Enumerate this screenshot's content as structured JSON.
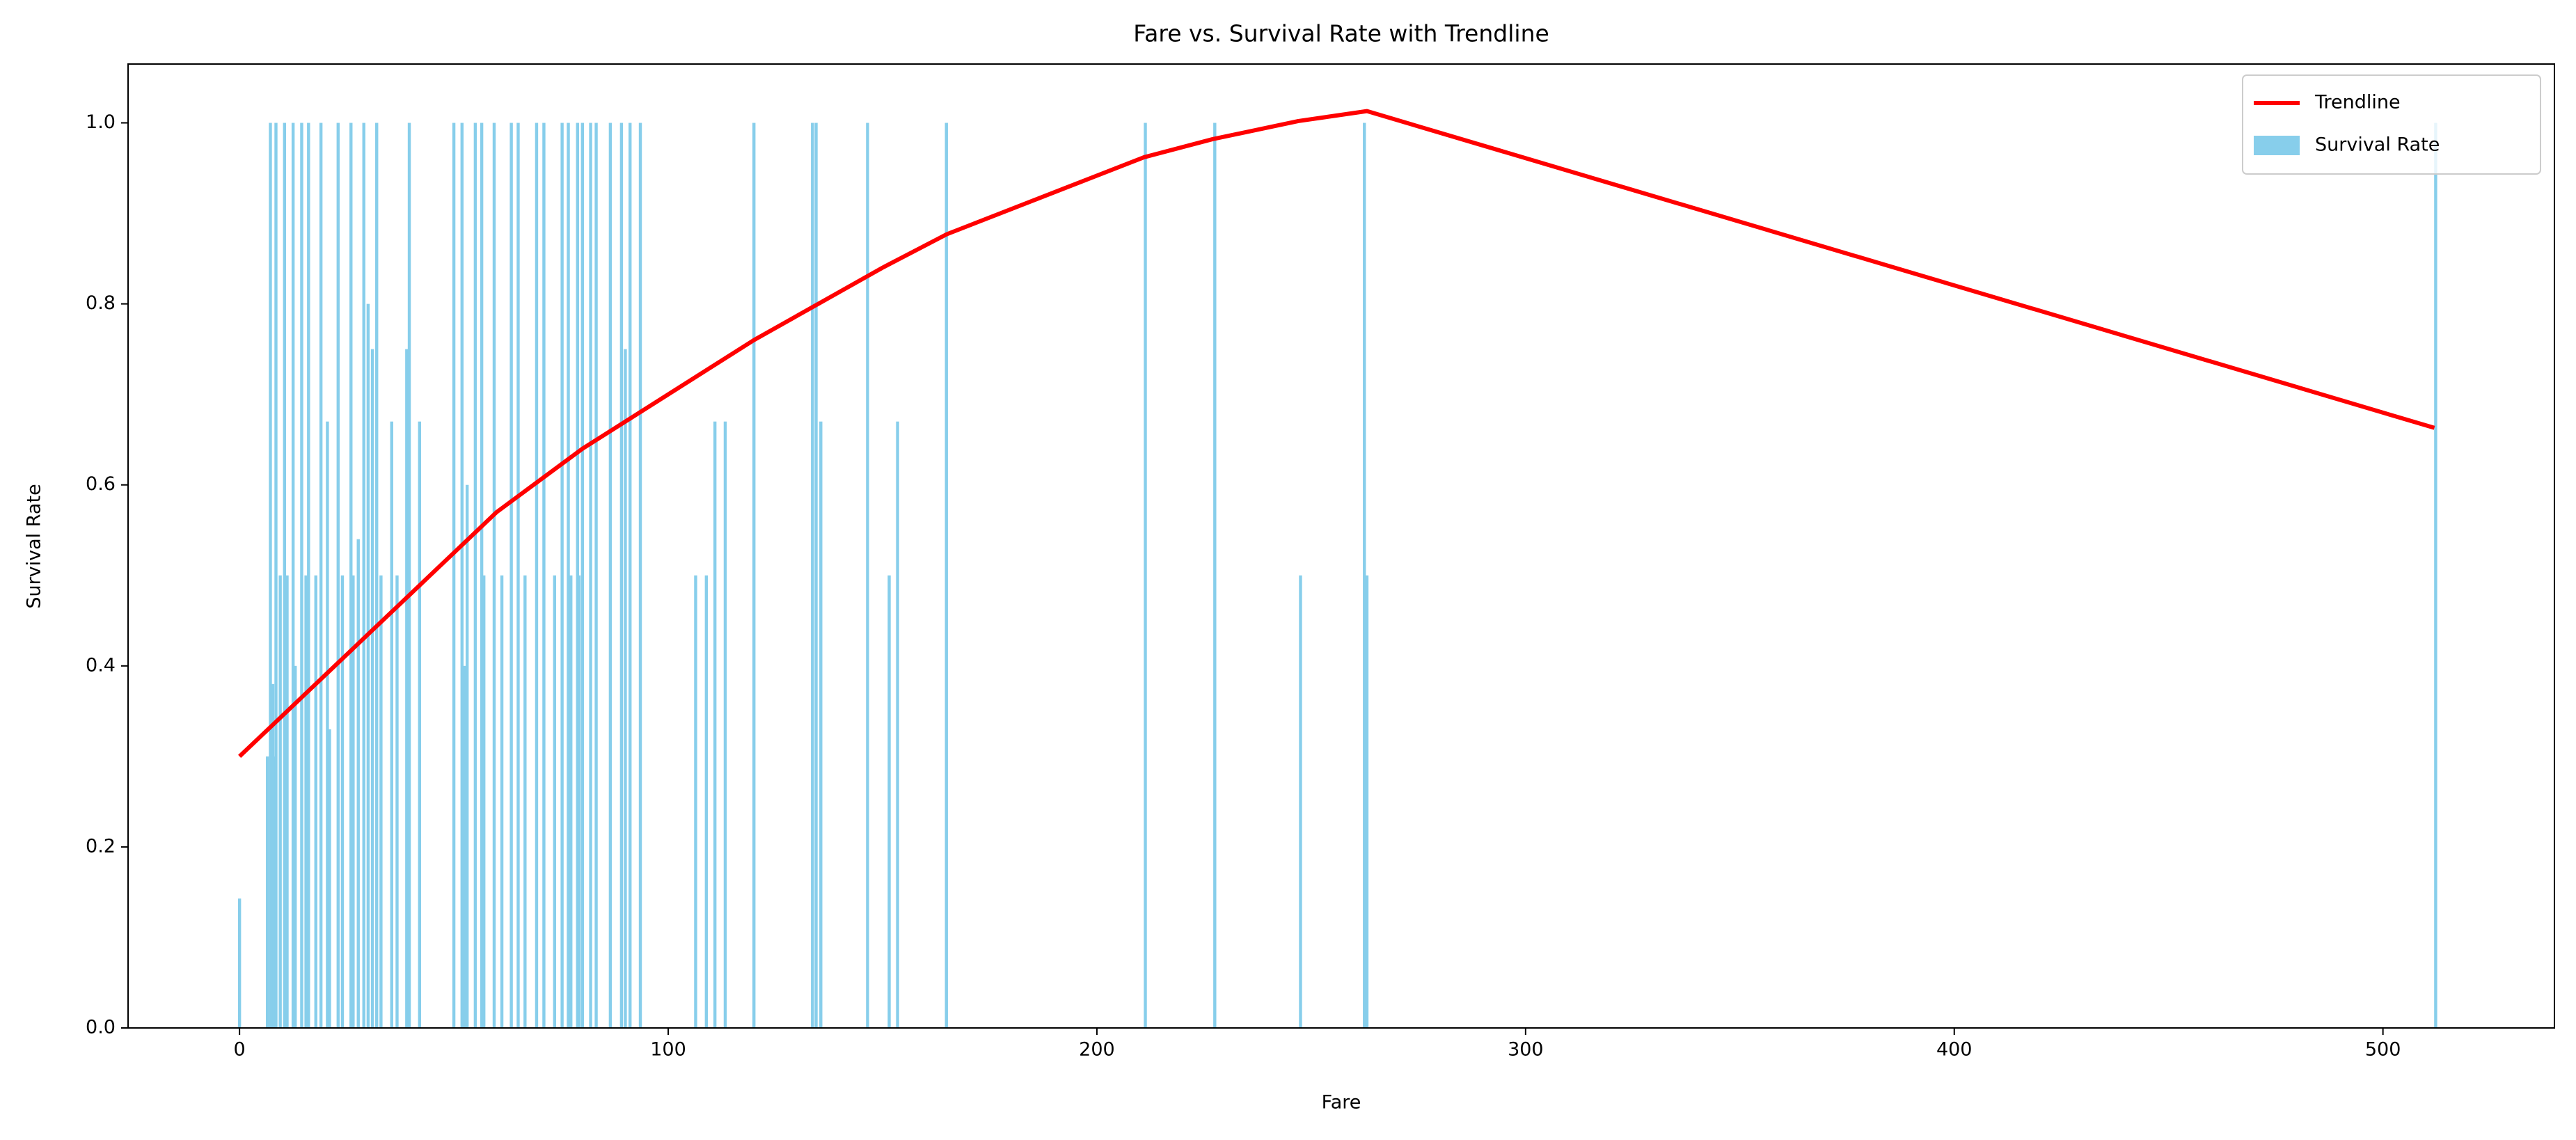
{
  "chart_data": {
    "type": "bar",
    "title": "Fare vs. Survival Rate with Trendline",
    "xlabel": "Fare",
    "ylabel": "Survival Rate",
    "xlim": [
      -26,
      540
    ],
    "xticks": [
      0,
      100,
      200,
      300,
      400,
      500
    ],
    "ylim": [
      0,
      1.065
    ],
    "yticks": [
      {
        "value": 0,
        "label": "0.0"
      },
      0.2,
      0.4,
      0.6,
      0.8,
      {
        "value": 1,
        "label": "1.0"
      }
    ],
    "legend": "upper right",
    "series": [
      {
        "name": "Trendline",
        "type": "line",
        "color": "#ff0000",
        "x": [
          0,
          20,
          40,
          60,
          80,
          100,
          120,
          135,
          150,
          165,
          211,
          227,
          247,
          263,
          512
        ],
        "values": [
          0.3,
          0.39,
          0.48,
          0.57,
          0.64,
          0.7,
          0.76,
          0.8,
          0.84,
          0.877,
          0.962,
          0.982,
          1.002,
          1.013,
          0.663
        ]
      },
      {
        "name": "Survival Rate",
        "type": "bar",
        "color": "#87ceeb",
        "x": [
          0,
          6.5,
          7.2,
          7.75,
          7.9,
          8.05,
          8.5,
          9.5,
          10.5,
          11.1,
          12.5,
          13,
          14.5,
          15.5,
          16.1,
          17.8,
          19,
          20.5,
          21,
          23,
          24,
          26,
          26.5,
          27.7,
          29,
          30,
          31,
          32,
          33,
          35.5,
          36.75,
          39,
          39.6,
          42,
          50,
          51.9,
          52.5,
          53.1,
          55,
          56.5,
          57,
          59.4,
          61.2,
          63.4,
          65,
          66.6,
          69.3,
          71,
          73.5,
          75.25,
          76.7,
          77.3,
          78.85,
          79.2,
          80,
          81.9,
          83.2,
          86.5,
          89.1,
          90,
          91.1,
          93.5,
          106.4,
          108.9,
          110.9,
          113.3,
          120,
          133.65,
          134.5,
          135.6,
          146.5,
          151.55,
          153.5,
          164.9,
          211.3,
          227.5,
          247.5,
          262.4,
          263,
          512.3
        ],
        "values": [
          0.143,
          0.3,
          1,
          0.38,
          0.3,
          0.1,
          1,
          0.5,
          1,
          0.5,
          1,
          0.4,
          1,
          0.5,
          1,
          0.5,
          1,
          0.67,
          0.33,
          1,
          0.5,
          1,
          0.5,
          0.54,
          1,
          0.8,
          0.75,
          1,
          0.5,
          0.67,
          0.5,
          0.75,
          1,
          0.67,
          1,
          1,
          0.4,
          0.6,
          1,
          1,
          0.5,
          1,
          0.5,
          1,
          1,
          0.5,
          1,
          1,
          0.5,
          1,
          1,
          0.5,
          1,
          0.5,
          1,
          1,
          1,
          1,
          1,
          0.75,
          1,
          1,
          0.5,
          0.5,
          0.67,
          0.67,
          1,
          1,
          1,
          0.67,
          1,
          0.5,
          0.67,
          1,
          1,
          1,
          0.5,
          1,
          0.5,
          1
        ]
      }
    ]
  }
}
